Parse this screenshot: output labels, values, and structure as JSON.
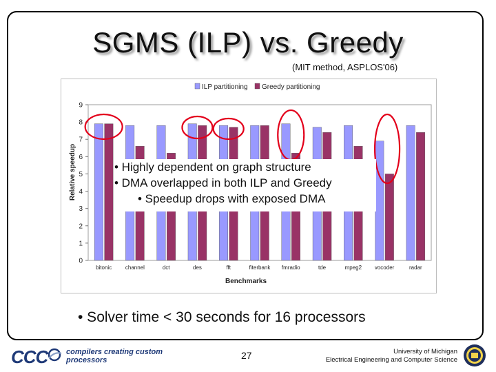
{
  "slide": {
    "title": "SGMS (ILP) vs. Greedy",
    "subtitle": "(MIT method, ASPLOS'06)",
    "bullets": [
      "• Highly dependent on graph structure",
      "• DMA overlapped in both ILP and Greedy",
      "• Speedup drops with exposed DMA"
    ],
    "solver_note": "• Solver time < 30 seconds for 16 processors",
    "page_number": "27",
    "footer_logo_text": "CCC",
    "footer_tagline": "compilers creating custom processors",
    "university_line1": "University of Michigan",
    "university_line2": "Electrical Engineering and Computer Science",
    "highlight_color": "#e3001b",
    "logo_icon": "ccc-swoosh-icon",
    "seal_icon": "university-seal-icon"
  },
  "chart_data": {
    "type": "bar",
    "title": "",
    "xlabel": "Benchmarks",
    "ylabel": "Relative speedup",
    "ylim": [
      0,
      9
    ],
    "yticks": [
      "0",
      "1",
      "2",
      "3",
      "4",
      "5",
      "6",
      "7",
      "8",
      "9"
    ],
    "categories": [
      "bitonic",
      "channel",
      "dct",
      "des",
      "fft",
      "fiterbank",
      "fmradio",
      "tde",
      "mpeg2",
      "vocoder",
      "radar"
    ],
    "legend_position": "top",
    "series": [
      {
        "name": "ILP partitioning",
        "color": "#9999ff",
        "values": [
          7.9,
          7.8,
          7.8,
          7.9,
          7.8,
          7.8,
          7.9,
          7.7,
          7.8,
          6.9,
          7.8
        ]
      },
      {
        "name": "Greedy partitioning",
        "color": "#993366",
        "values": [
          7.9,
          6.6,
          6.2,
          7.8,
          7.7,
          7.8,
          6.2,
          7.4,
          6.6,
          5.0,
          7.4
        ]
      }
    ],
    "circled_categories": [
      "bitonic",
      "des",
      "fft",
      "fmradio",
      "vocoder"
    ]
  }
}
